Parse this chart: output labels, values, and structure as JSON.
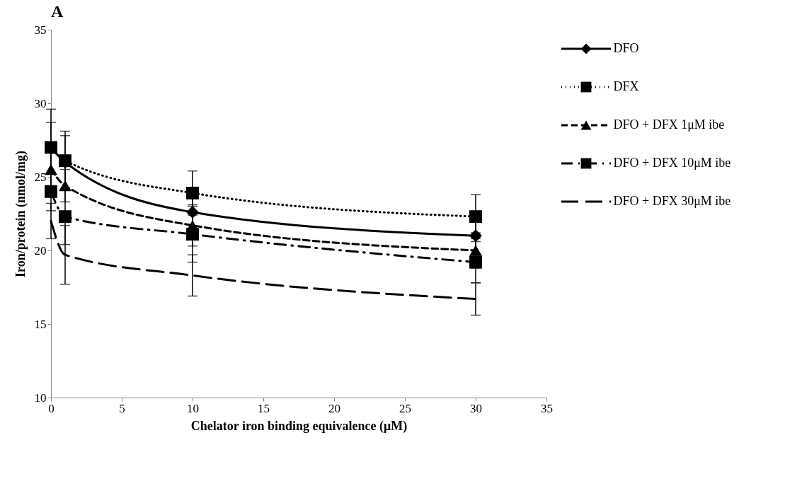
{
  "chart_data": {
    "type": "line",
    "title": "A",
    "xlabel": "Chelator iron binding equivalence (μM)",
    "ylabel": "Iron/protein (nmol/mg)",
    "x": [
      0,
      1,
      10,
      30
    ],
    "series": [
      {
        "name": "DFO",
        "color": "#000000",
        "values": [
          27,
          26.0,
          22.6,
          21.0
        ],
        "errors": [
          1.7,
          1.8,
          1.6,
          1.2
        ],
        "marker": "diamond",
        "line_style": "solid"
      },
      {
        "name": "DFX",
        "color": "#000000",
        "values": [
          27,
          26.1,
          23.9,
          22.3
        ],
        "errors": [
          2.6,
          2.0,
          1.5,
          1.5
        ],
        "marker": "square",
        "line_style": "dotted"
      },
      {
        "name": "DFO + DFX   1μM ibe",
        "color": "#000000",
        "values": [
          25.5,
          24.4,
          21.7,
          20.0
        ],
        "errors": [
          1.3,
          1.1,
          1.4,
          1.2
        ],
        "marker": "triangle",
        "line_style": "dashed"
      },
      {
        "name": "DFO + DFX 10μM ibe",
        "color": "#000000",
        "values": [
          24.0,
          22.3,
          21.1,
          19.2
        ],
        "errors": [
          1.3,
          1.9,
          1.9,
          1.4
        ],
        "marker": "square",
        "line_style": "dashdot"
      },
      {
        "name": "DFO + DFX 30μM ibe",
        "color": "#000000",
        "values": [
          22.0,
          19.7,
          18.3,
          16.7
        ],
        "errors": [
          1.2,
          2.0,
          1.4,
          1.1
        ],
        "marker": "none",
        "line_style": "longdash"
      }
    ],
    "xlim": [
      0,
      35
    ],
    "xticks": [
      0,
      5,
      10,
      15,
      20,
      25,
      30,
      35
    ],
    "ylim": [
      10,
      35
    ],
    "yticks": [
      10,
      15,
      20,
      25,
      30,
      35
    ],
    "grid": false,
    "legend": "top right"
  }
}
